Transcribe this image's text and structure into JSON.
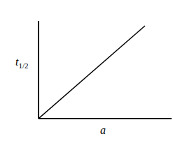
{
  "chart_data": {
    "type": "line",
    "xlabel": "a",
    "ylabel": "t1/2",
    "x": [
      0,
      0.8
    ],
    "values": [
      0,
      0.95
    ],
    "color": "#000000",
    "xlim": [
      0,
      1
    ],
    "ylim": [
      0,
      1
    ],
    "tick_labels": false,
    "grid": false
  }
}
